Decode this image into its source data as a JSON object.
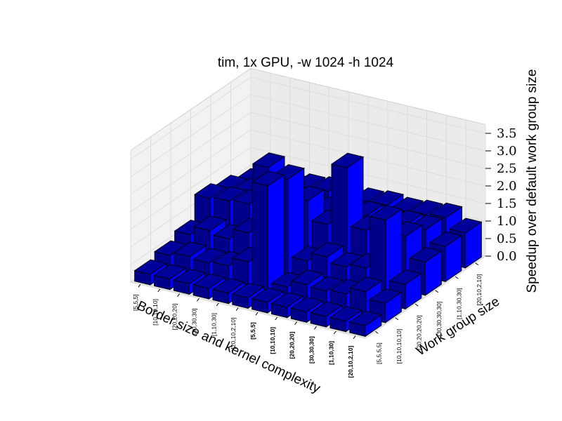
{
  "chart_data": {
    "type": "bar3d",
    "title": "tim, 1x GPU, -w 1024 -h 1024",
    "xlabel": "Border size and kernel complexity",
    "ylabel": "Work group size",
    "zlabel": "Speedup  over default work group size",
    "x_categories": [
      "[5,5,5]",
      "[10,10,10]",
      "[20,20,20]",
      "[30,30,30]",
      "[1,10,30]",
      "[20,10,2,10]",
      "[5,5,5]",
      "[10,10,10]",
      "[20,20,20]",
      "[30,30,30]",
      "[1,10,30]",
      "[20,10,2,10]"
    ],
    "x_bold_from": 6,
    "y_categories": [
      "[5,5,5,5]",
      "[10,10,10,10]",
      "[20,20,20,20]",
      "[30,30,30,30]",
      "[1,10,30,30]",
      "[20,10,2,10]"
    ],
    "zticks": [
      "0.0",
      "0.5",
      "1.0",
      "1.5",
      "2.0",
      "2.5",
      "3.0",
      "3.5"
    ],
    "zlim": [
      0,
      3.5
    ],
    "values": [
      [
        0.3,
        0.45,
        0.65,
        1.3,
        1.15,
        0.95
      ],
      [
        0.3,
        0.55,
        0.9,
        1.35,
        1.2,
        1.1
      ],
      [
        0.3,
        0.5,
        0.8,
        1.4,
        1.25,
        1.1
      ],
      [
        0.3,
        0.55,
        1.1,
        1.45,
        1.3,
        1.2
      ],
      [
        0.3,
        0.8,
        3.1,
        2.0,
        1.3,
        1.25
      ],
      [
        0.3,
        3.1,
        2.9,
        1.9,
        1.2,
        1.1
      ],
      [
        0.3,
        0.35,
        0.7,
        1.35,
        1.3,
        1.2
      ],
      [
        0.3,
        0.55,
        0.95,
        3.1,
        1.35,
        1.25
      ],
      [
        0.3,
        0.5,
        0.8,
        1.45,
        1.3,
        1.2
      ],
      [
        0.3,
        0.55,
        0.9,
        1.5,
        1.35,
        1.25
      ],
      [
        0.3,
        0.75,
        2.4,
        1.55,
        1.35,
        1.3
      ],
      [
        0.3,
        0.55,
        0.7,
        0.95,
        1.0,
        1.0
      ]
    ],
    "bar_color_side": "#0000ff",
    "bar_color_front": "#00008b",
    "bar_color_top": "#00009a",
    "grid": true
  }
}
